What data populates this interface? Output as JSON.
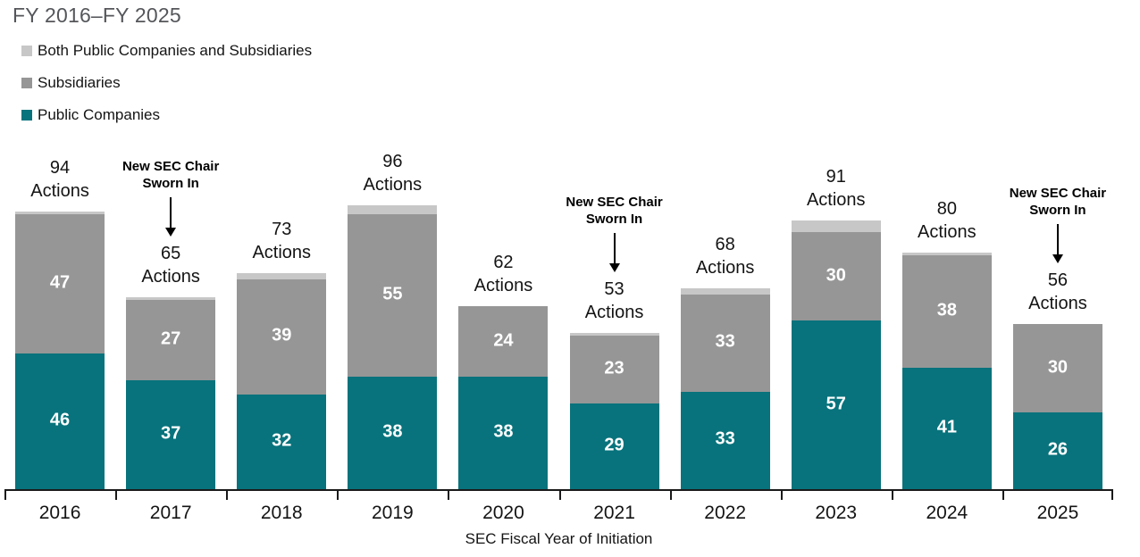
{
  "title": "FY 2016–FY 2025",
  "xlabel": "SEC Fiscal Year of Initiation",
  "legend": {
    "items": [
      {
        "label": "Both Public Companies and Subsidiaries",
        "color": "#c7c7c7"
      },
      {
        "label": "Subsidiaries",
        "color": "#969696"
      },
      {
        "label": "Public Companies",
        "color": "#08737c"
      }
    ]
  },
  "colors": {
    "public_companies": "#08737c",
    "subsidiaries": "#969696",
    "both": "#c7c7c7",
    "title_text": "#54565a",
    "axis": "#1a1a1a"
  },
  "chart_data": {
    "type": "bar",
    "stacked": true,
    "title": "FY 2016–FY 2025",
    "xlabel": "SEC Fiscal Year of Initiation",
    "legend_position": "top-left",
    "y_axis": "hidden",
    "ylim": [
      0,
      100
    ],
    "categories": [
      "2016",
      "2017",
      "2018",
      "2019",
      "2020",
      "2021",
      "2022",
      "2023",
      "2024",
      "2025"
    ],
    "series": [
      {
        "name": "Public Companies",
        "color": "#08737c",
        "values": [
          46,
          37,
          32,
          38,
          38,
          29,
          33,
          57,
          41,
          26
        ]
      },
      {
        "name": "Subsidiaries",
        "color": "#969696",
        "values": [
          47,
          27,
          39,
          55,
          24,
          23,
          33,
          30,
          38,
          30
        ]
      },
      {
        "name": "Both Public Companies and Subsidiaries",
        "color": "#c7c7c7",
        "values": [
          1,
          1,
          2,
          3,
          0,
          1,
          2,
          4,
          1,
          0
        ]
      }
    ],
    "totals": [
      94,
      65,
      73,
      96,
      62,
      53,
      68,
      91,
      80,
      56
    ],
    "total_suffix": "Actions",
    "annotations": [
      {
        "category": "2017",
        "lines": [
          "New SEC Chair",
          "Sworn In"
        ]
      },
      {
        "category": "2021",
        "lines": [
          "New SEC Chair",
          "Sworn In"
        ]
      },
      {
        "category": "2025",
        "lines": [
          "New SEC Chair",
          "Sworn In"
        ]
      }
    ]
  }
}
